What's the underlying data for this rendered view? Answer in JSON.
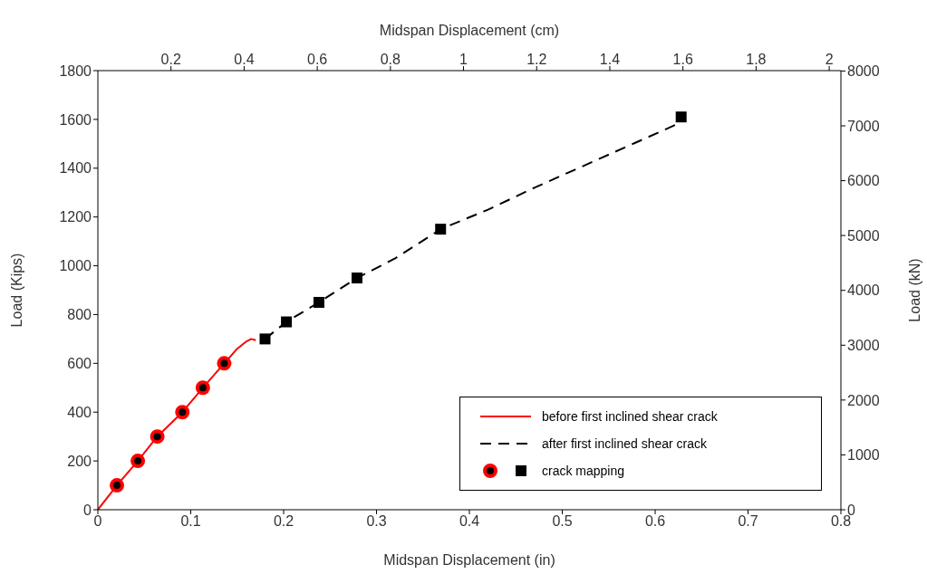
{
  "chart_data": {
    "type": "line",
    "xlabel": "Midspan Displacement (in)",
    "x2label": "Midspan Displacement (cm)",
    "ylabel": "Load (Kips)",
    "y2label": "Load (kN)",
    "xlim": [
      0,
      0.8
    ],
    "xticks": [
      0,
      0.1,
      0.2,
      0.3,
      0.4,
      0.5,
      0.6,
      0.7,
      0.8
    ],
    "x2lim": [
      0,
      2.032
    ],
    "x2ticks": [
      0.2,
      0.4,
      0.6,
      0.8,
      1,
      1.2,
      1.4,
      1.6,
      1.8,
      2
    ],
    "ylim": [
      0,
      1800
    ],
    "yticks": [
      0,
      200,
      400,
      600,
      800,
      1000,
      1200,
      1400,
      1600,
      1800
    ],
    "y2lim": [
      0,
      8007
    ],
    "y2ticks": [
      0,
      1000,
      2000,
      3000,
      4000,
      5000,
      6000,
      7000,
      8000
    ],
    "legend": "bottom right",
    "grid": false,
    "series": [
      {
        "name": "before first inclined shear crack",
        "type": "line",
        "color": "#ff0000",
        "line_style": "solid",
        "marker": "none",
        "x": [
          0,
          0.0205,
          0.043,
          0.064,
          0.091,
          0.113,
          0.136,
          0.15,
          0.16,
          0.165,
          0.17
        ],
        "values": [
          0,
          100,
          200,
          300,
          400,
          500,
          600,
          660,
          690,
          700,
          695
        ]
      },
      {
        "name": "after first inclined shear crack",
        "type": "line",
        "color": "#000000",
        "line_style": "dashed",
        "marker": "none",
        "x": [
          0.18,
          0.203,
          0.238,
          0.279,
          0.32,
          0.369,
          0.42,
          0.47,
          0.519,
          0.578,
          0.628
        ],
        "values": [
          700,
          770,
          850,
          950,
          1030,
          1150,
          1230,
          1320,
          1403,
          1503,
          1588
        ]
      },
      {
        "type": "scatter",
        "color": "#ff0000",
        "marker": "circle",
        "x": [
          0.0205,
          0.043,
          0.064,
          0.091,
          0.113,
          0.136
        ],
        "values": [
          100,
          200,
          300,
          400,
          500,
          600
        ]
      },
      {
        "name": "crack mapping",
        "type": "scatter",
        "color": "#000000",
        "marker": "square",
        "x": [
          0.18,
          0.203,
          0.238,
          0.279,
          0.369,
          0.628
        ],
        "values": [
          700,
          770,
          850,
          950,
          1150,
          1610
        ]
      }
    ]
  }
}
